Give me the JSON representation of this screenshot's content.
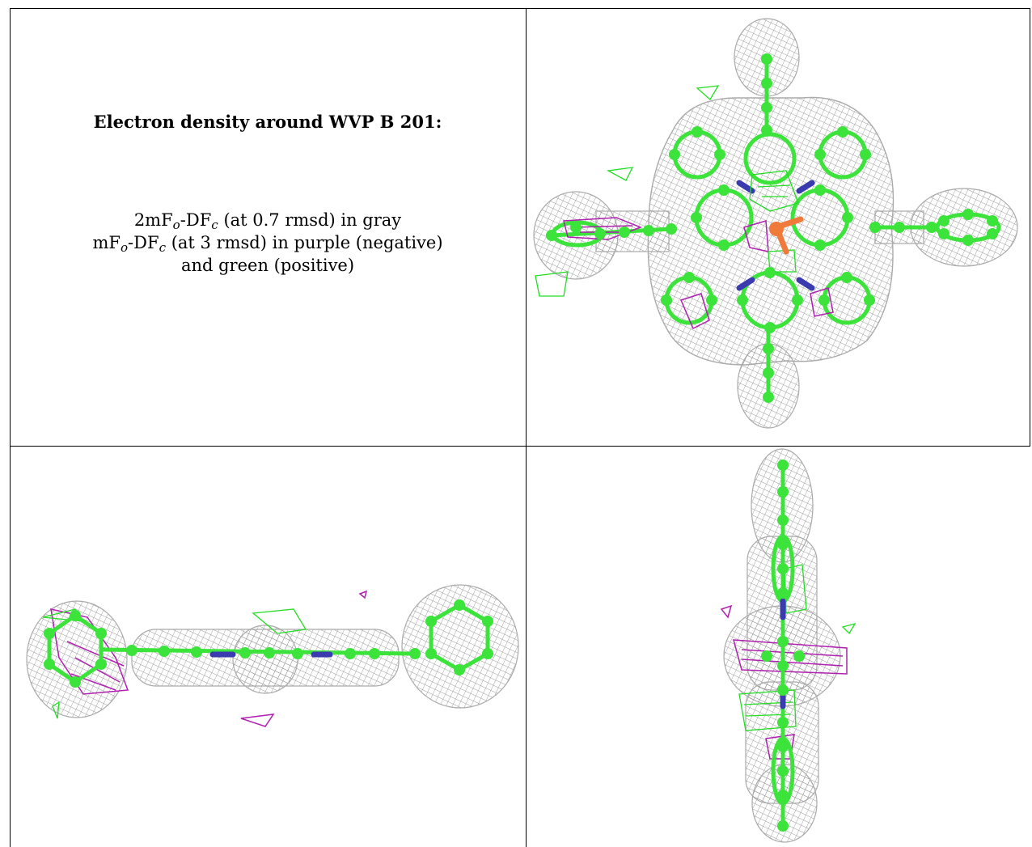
{
  "caption": {
    "title": "Electron density around WVP B 201:",
    "line1_main": "2mF",
    "line1_sub1": "o",
    "line1_mid": "-DF",
    "line1_sub2": "c",
    "line1_rest": " (at 0.7 rmsd) in gray",
    "line2_main": "mF",
    "line2_sub1": "o",
    "line2_mid": "-DF",
    "line2_sub2": "c",
    "line2_rest": " (at 3 rmsd) in purple (negative)",
    "line3": "and green (positive)"
  },
  "colors": {
    "mesh_gray": "#9a9a9a",
    "atom_green": "#3be33b",
    "nitrogen_blue": "#3b3bb0",
    "metal_orange": "#f07a3a",
    "neg_purple": "#b020b0",
    "pos_green": "#22dd22"
  },
  "panels": [
    {
      "view": "top"
    },
    {
      "view": "side"
    },
    {
      "view": "end"
    }
  ]
}
